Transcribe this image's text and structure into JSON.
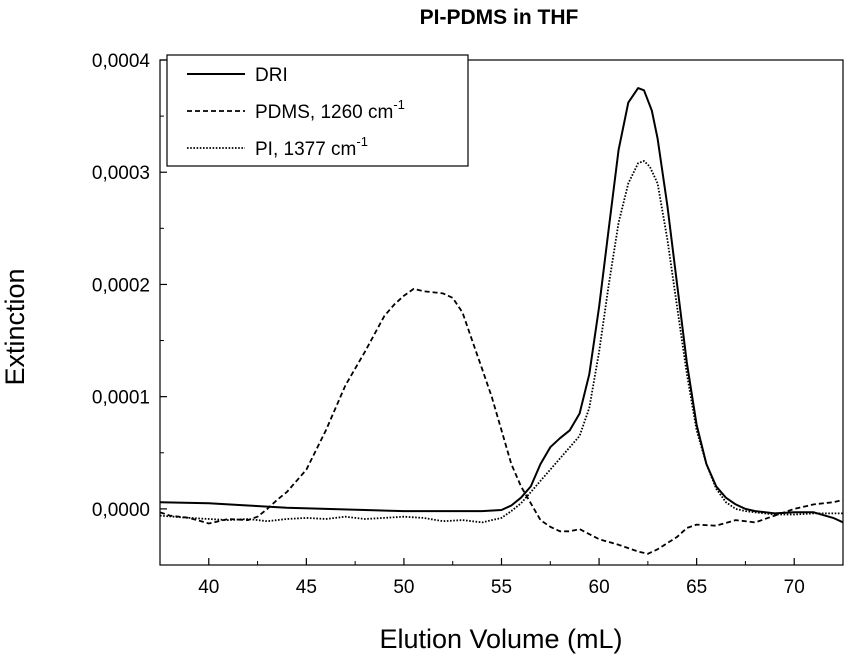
{
  "chart_data": {
    "type": "line",
    "title": "PI-PDMS in THF",
    "xlabel": "Elution Volume (mL)",
    "ylabel": "Extinction",
    "xlim": [
      37.5,
      72.5
    ],
    "ylim": [
      -5e-05,
      0.0004
    ],
    "x_ticks": [
      40,
      45,
      50,
      55,
      60,
      65,
      70
    ],
    "x_tick_labels": [
      "40",
      "45",
      "50",
      "55",
      "60",
      "65",
      "70"
    ],
    "y_ticks": [
      0.0,
      0.0001,
      0.0002,
      0.0003,
      0.0004
    ],
    "y_tick_labels": [
      "0,0000",
      "0,0001",
      "0,0002",
      "0,0003",
      "0,0004"
    ],
    "grid": false,
    "legend_position": "top-left",
    "series": [
      {
        "name": "DRI",
        "name_main": "DRI",
        "name_sup": "",
        "style": "solid",
        "x": [
          37.5,
          40,
          42,
          44,
          46,
          48,
          50,
          52,
          54,
          55,
          55.5,
          56,
          56.5,
          57,
          57.5,
          58,
          58.5,
          59,
          59.5,
          60,
          60.5,
          61,
          61.5,
          62,
          62.3,
          62.7,
          63,
          63.5,
          64,
          64.5,
          65,
          65.5,
          66,
          66.5,
          67,
          67.5,
          68,
          69,
          70,
          71,
          72,
          72.5
        ],
        "y": [
          6e-06,
          5e-06,
          3e-06,
          1e-06,
          0.0,
          -1e-06,
          -2e-06,
          -2e-06,
          -2e-06,
          -1e-06,
          3e-06,
          1e-05,
          2e-05,
          4e-05,
          5.5e-05,
          6.3e-05,
          7e-05,
          8.5e-05,
          0.00012,
          0.00018,
          0.00025,
          0.00032,
          0.000362,
          0.000375,
          0.000373,
          0.000355,
          0.00033,
          0.00027,
          0.0002,
          0.00013,
          7.5e-05,
          4e-05,
          2e-05,
          1e-05,
          4e-06,
          0.0,
          -2e-06,
          -4e-06,
          -3e-06,
          -3e-06,
          -8e-06,
          -1.2e-05
        ]
      },
      {
        "name": "PDMS, 1260 cm-1",
        "name_main": "PDMS, 1260 cm",
        "name_sup": "-1",
        "style": "dashed",
        "x": [
          37.5,
          38,
          39,
          40,
          41,
          42,
          42.5,
          43,
          43.5,
          44,
          45,
          46,
          47,
          48,
          49,
          49.5,
          50,
          50.5,
          51,
          52,
          52.5,
          53,
          53.5,
          54,
          54.5,
          55,
          55.5,
          56,
          56.5,
          57,
          57.5,
          58,
          58.5,
          59,
          60,
          61,
          62,
          62.5,
          63,
          64,
          64.5,
          65,
          66,
          67,
          68,
          69,
          70,
          71,
          72,
          72.5
        ],
        "y": [
          -3e-06,
          -6e-06,
          -8e-06,
          -1.3e-05,
          -9e-06,
          -1e-05,
          -7e-06,
          0.0,
          8e-06,
          1.5e-05,
          3.5e-05,
          7e-05,
          0.00011,
          0.00014,
          0.000172,
          0.000182,
          0.00019,
          0.000196,
          0.000194,
          0.000192,
          0.000188,
          0.000175,
          0.00015,
          0.000125,
          0.0001,
          7e-05,
          4e-05,
          2e-05,
          5e-06,
          -1e-05,
          -1.6e-05,
          -2e-05,
          -2e-05,
          -1.8e-05,
          -2.7e-05,
          -3.2e-05,
          -3.8e-05,
          -4e-05,
          -3.6e-05,
          -2.5e-05,
          -1.7e-05,
          -1.4e-05,
          -1.5e-05,
          -1e-05,
          -1.2e-05,
          -6e-06,
          0.0,
          4e-06,
          6e-06,
          8e-06
        ]
      },
      {
        "name": "PI, 1377 cm-1",
        "name_main": "PI, 1377 cm",
        "name_sup": "-1",
        "style": "dotted",
        "x": [
          37.5,
          39,
          40,
          41,
          42,
          43,
          44,
          45,
          46,
          47,
          48,
          49,
          50,
          51,
          52,
          53,
          54,
          55,
          55.5,
          56,
          56.5,
          57,
          57.5,
          58,
          58.5,
          59,
          59.5,
          60,
          60.5,
          61,
          61.5,
          62,
          62.3,
          62.6,
          63,
          63.5,
          64,
          64.5,
          65,
          65.5,
          66,
          66.5,
          67,
          67.5,
          68,
          69,
          70,
          71,
          72,
          72.5
        ],
        "y": [
          -6e-06,
          -8e-06,
          -9e-06,
          -1e-05,
          -9e-06,
          -1.1e-05,
          -9e-06,
          -8e-06,
          -9e-06,
          -7e-06,
          -9e-06,
          -8e-06,
          -7e-06,
          -8e-06,
          -1.1e-05,
          -1e-05,
          -1.2e-05,
          -8e-06,
          -2e-06,
          5e-06,
          1.5e-05,
          2.5e-05,
          3.5e-05,
          4.5e-05,
          5.5e-05,
          6.5e-05,
          9e-05,
          0.00014,
          0.0002,
          0.000255,
          0.00029,
          0.000308,
          0.00031,
          0.000305,
          0.00029,
          0.00024,
          0.00018,
          0.00012,
          7e-05,
          4e-05,
          1.8e-05,
          6e-06,
          0.0,
          -2e-06,
          -3e-06,
          -5e-06,
          -5e-06,
          -4e-06,
          -4e-06,
          -4e-06
        ]
      }
    ]
  }
}
